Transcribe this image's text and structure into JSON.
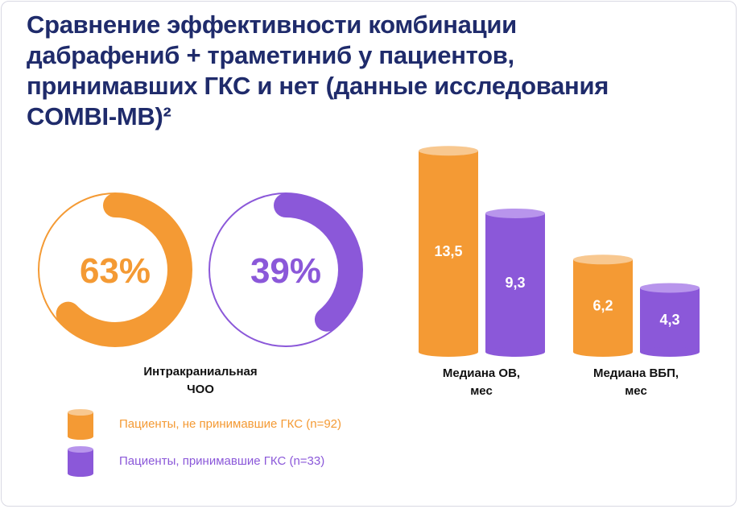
{
  "title": "Сравнение эффективности комбинации дабрафениб + траметиниб у пациентов, принимавших ГКС и нет (данные исследования COMBI-MB)²",
  "colors": {
    "orange": "#f49a34",
    "orange_top": "#f8c890",
    "purple": "#8b58d9",
    "purple_top": "#b895ec",
    "title": "#1f2b6b"
  },
  "chart_data": [
    {
      "type": "pie",
      "label": "Интракраниальная ЧОО",
      "slices": [
        {
          "series": "Пациенты, не принимавшие ГКС (n=92)",
          "value": 63,
          "value_label": "63%",
          "color": "#f49a34"
        },
        {
          "series": "Пациенты, принимавшие ГКС (n=33)",
          "value": 39,
          "value_label": "39%",
          "color": "#8b58d9"
        }
      ]
    },
    {
      "type": "bar",
      "categories": [
        "Медиана ОВ, мес",
        "Медиана ВБП, мес"
      ],
      "series": [
        {
          "name": "Пациенты, не принимавшие ГКС (n=92)",
          "values": [
            13.5,
            6.2
          ],
          "value_labels": [
            "13,5",
            "6,2"
          ],
          "color": "#f49a34"
        },
        {
          "name": "Пациенты, принимавшие ГКС (n=33)",
          "values": [
            9.3,
            4.3
          ],
          "value_labels": [
            "9,3",
            "4,3"
          ],
          "color": "#8b58d9"
        }
      ],
      "category_labels": [
        [
          "Медиана ОВ,",
          "мес"
        ],
        [
          "Медиана ВБП,",
          "мес"
        ]
      ]
    }
  ],
  "legend": [
    {
      "label": "Пациенты, не принимавшие ГКС (n=92)",
      "color": "#f49a34"
    },
    {
      "label": "Пациенты, принимавшие ГКС (n=33)",
      "color": "#8b58d9"
    }
  ]
}
